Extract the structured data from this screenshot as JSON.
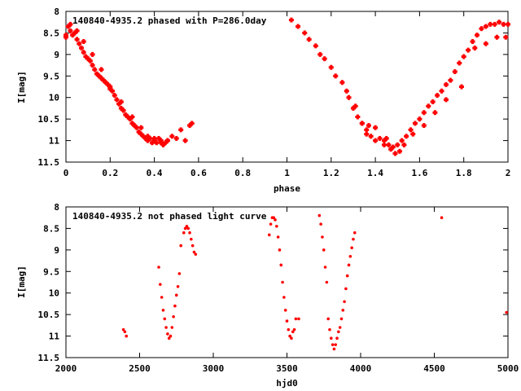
{
  "colors": {
    "points": "#ff0000",
    "axes": "#000000",
    "background": "#ffffff"
  },
  "chart_data": [
    {
      "type": "scatter",
      "title": "140840-4935.2 phased with P=286.0day",
      "xlabel": "phase",
      "ylabel": "I[mag]",
      "xlim": [
        0,
        2
      ],
      "ylim": [
        11.5,
        8
      ],
      "y_inverted": true,
      "grid": false,
      "marker": "cross",
      "xtick_labels": [
        "0",
        "0.2",
        "0.4",
        "0.6",
        "0.8",
        "1",
        "1.2",
        "1.4",
        "1.6",
        "1.8",
        "2"
      ],
      "ytick_labels": [
        "8",
        "8.5",
        "9",
        "9.5",
        "10",
        "10.5",
        "11",
        "11.5"
      ],
      "series": [
        {
          "x": [
            0.0,
            0.01,
            0.02,
            0.03,
            0.04,
            0.05,
            0.06,
            0.07,
            0.08,
            0.09,
            0.1,
            0.11,
            0.12,
            0.13,
            0.14,
            0.15,
            0.16,
            0.17,
            0.18,
            0.19,
            0.2,
            0.21,
            0.22,
            0.23,
            0.24,
            0.25,
            0.26,
            0.27,
            0.28,
            0.29,
            0.3,
            0.31,
            0.32,
            0.33,
            0.34,
            0.35,
            0.36,
            0.37,
            0.38,
            0.39,
            0.4,
            0.41,
            0.42,
            0.43,
            0.44,
            0.45,
            0.46,
            0.48,
            0.5,
            0.52,
            0.54,
            0.57,
            0.0,
            0.02,
            0.05,
            0.08,
            0.12,
            0.16,
            0.2,
            0.25,
            0.3,
            0.34,
            0.37,
            0.4,
            0.43,
            0.46,
            0.56,
            1.02,
            1.05,
            1.08,
            1.1,
            1.13,
            1.15,
            1.17,
            1.2,
            1.22,
            1.25,
            1.27,
            1.28,
            1.3,
            1.32,
            1.34,
            1.36,
            1.38,
            1.4,
            1.42,
            1.44,
            1.46,
            1.48,
            1.5,
            1.52,
            1.54,
            1.56,
            1.58,
            1.6,
            1.62,
            1.64,
            1.66,
            1.68,
            1.7,
            1.72,
            1.74,
            1.76,
            1.78,
            1.8,
            1.82,
            1.84,
            1.86,
            1.88,
            1.9,
            1.92,
            1.94,
            1.96,
            1.98,
            2.0,
            1.34,
            1.37,
            1.4,
            1.45,
            1.49,
            1.53,
            1.57,
            1.62,
            1.67,
            1.72,
            1.79,
            1.85,
            1.9,
            1.95,
            1.99,
            1.44,
            1.47,
            1.51,
            1.36,
            1.31
          ],
          "y": [
            8.55,
            8.35,
            8.45,
            8.55,
            8.5,
            8.65,
            8.75,
            8.85,
            8.95,
            9.05,
            9.1,
            9.15,
            9.25,
            9.35,
            9.45,
            9.5,
            9.55,
            9.6,
            9.65,
            9.7,
            9.8,
            9.85,
            9.95,
            10.05,
            10.15,
            10.25,
            10.3,
            10.4,
            10.45,
            10.5,
            10.6,
            10.65,
            10.7,
            10.8,
            10.85,
            10.9,
            10.95,
            11.0,
            10.95,
            11.05,
            11.0,
            11.05,
            10.95,
            11.05,
            11.1,
            11.05,
            11.0,
            10.9,
            10.95,
            10.75,
            11.0,
            10.6,
            8.6,
            8.3,
            8.45,
            8.7,
            9.0,
            9.35,
            9.75,
            10.1,
            10.45,
            10.7,
            10.9,
            10.95,
            11.0,
            11.0,
            10.65,
            8.2,
            8.35,
            8.5,
            8.65,
            8.8,
            9.0,
            9.1,
            9.3,
            9.5,
            9.65,
            9.85,
            10.0,
            10.25,
            10.45,
            10.6,
            10.85,
            10.9,
            11.0,
            10.95,
            11.0,
            11.1,
            11.15,
            11.1,
            11.0,
            10.9,
            10.75,
            10.6,
            10.5,
            10.35,
            10.2,
            10.1,
            9.95,
            9.85,
            9.7,
            9.6,
            9.4,
            9.2,
            9.05,
            8.9,
            8.7,
            8.55,
            8.4,
            8.35,
            8.3,
            8.3,
            8.25,
            8.3,
            8.3,
            10.6,
            10.65,
            10.7,
            10.95,
            11.3,
            11.1,
            10.85,
            10.65,
            10.35,
            10.05,
            9.75,
            8.85,
            8.75,
            8.6,
            8.6,
            11.1,
            11.2,
            11.25,
            10.75,
            10.2
          ]
        }
      ]
    },
    {
      "type": "scatter",
      "title": "140840-4935.2 not phased light curve",
      "xlabel": "hjd0",
      "ylabel": "I[mag]",
      "xlim": [
        2000,
        5000
      ],
      "ylim": [
        11.5,
        8
      ],
      "y_inverted": true,
      "grid": false,
      "marker": "dot",
      "xtick_labels": [
        "2000",
        "2500",
        "3000",
        "3500",
        "4000",
        "4500",
        "5000"
      ],
      "ytick_labels": [
        "8",
        "8.5",
        "9",
        "9.5",
        "10",
        "10.5",
        "11",
        "11.5"
      ],
      "series": [
        {
          "x": [
            2390,
            2400,
            2410,
            2630,
            2640,
            2650,
            2660,
            2670,
            2680,
            2690,
            2700,
            2710,
            2720,
            2730,
            2740,
            2750,
            2760,
            2770,
            2780,
            2800,
            2810,
            2820,
            2830,
            2840,
            2850,
            2860,
            2870,
            2880,
            3380,
            3390,
            3400,
            3410,
            3420,
            3430,
            3440,
            3450,
            3460,
            3470,
            3480,
            3490,
            3500,
            3510,
            3520,
            3530,
            3540,
            3550,
            3560,
            3580,
            3720,
            3730,
            3740,
            3750,
            3760,
            3770,
            3780,
            3790,
            3800,
            3810,
            3820,
            3830,
            3840,
            3850,
            3860,
            3870,
            3880,
            3890,
            3900,
            3910,
            3920,
            3930,
            3940,
            3950,
            3960,
            4550,
            4990
          ],
          "y": [
            10.85,
            10.9,
            11.0,
            9.4,
            9.8,
            10.1,
            10.4,
            10.6,
            10.8,
            10.95,
            11.05,
            11.0,
            10.8,
            10.55,
            10.3,
            10.05,
            9.85,
            9.55,
            8.9,
            8.6,
            8.5,
            8.45,
            8.5,
            8.6,
            8.75,
            8.9,
            9.05,
            9.1,
            8.65,
            8.4,
            8.25,
            8.25,
            8.3,
            8.45,
            8.7,
            9.0,
            9.35,
            9.75,
            10.1,
            10.4,
            10.65,
            10.85,
            11.0,
            11.05,
            10.9,
            10.85,
            10.6,
            10.6,
            8.2,
            8.4,
            8.7,
            9.0,
            9.4,
            9.75,
            10.6,
            10.85,
            11.05,
            11.2,
            11.3,
            11.2,
            11.05,
            10.9,
            10.8,
            10.6,
            10.4,
            10.2,
            9.9,
            9.6,
            9.35,
            9.15,
            8.95,
            8.75,
            8.6,
            8.25,
            10.45
          ]
        }
      ]
    }
  ]
}
